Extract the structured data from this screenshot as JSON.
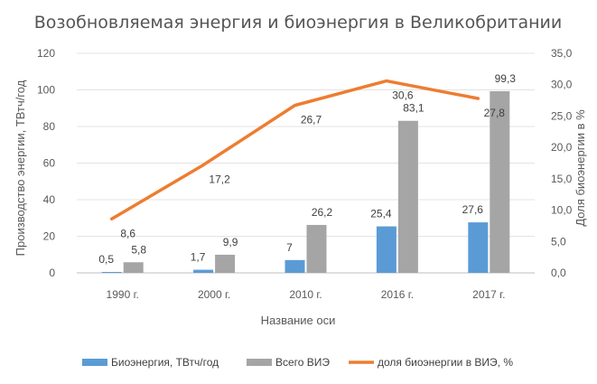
{
  "chart_data": {
    "type": "bar",
    "title": "Возобновляемая энергия и биоэнергия в Великобритании",
    "xlabel": "Название оси",
    "ylabel": "Производство энергии, ТВтч/год",
    "y2label": "Доля биоэнергии в %",
    "categories": [
      "1990 г.",
      "2000 г.",
      "2010 г.",
      "2016 г.",
      "2017 г."
    ],
    "ylim": [
      0,
      120
    ],
    "y2lim": [
      0,
      35
    ],
    "yticks": [
      "0",
      "20",
      "40",
      "60",
      "80",
      "100",
      "120"
    ],
    "y2ticks": [
      "0,0",
      "5,0",
      "10,0",
      "15,0",
      "20,0",
      "25,0",
      "30,0",
      "35,0"
    ],
    "grid": true,
    "legend_position": "bottom",
    "series": [
      {
        "name": "Биоэнергия, ТВтч/год",
        "type": "bar",
        "axis": "left",
        "color": "#5b9bd5",
        "values": [
          0.5,
          1.7,
          7,
          25.4,
          27.6
        ],
        "labels": [
          "0,5",
          "1,7",
          "7",
          "25,4",
          "27,6"
        ]
      },
      {
        "name": "Всего ВИЭ",
        "type": "bar",
        "axis": "left",
        "color": "#a5a5a5",
        "values": [
          5.8,
          9.9,
          26.2,
          83.1,
          99.3
        ],
        "labels": [
          "5,8",
          "9,9",
          "26,2",
          "83,1",
          "99,3"
        ]
      },
      {
        "name": "доля биоэнергии в ВИЭ, %",
        "type": "line",
        "axis": "right",
        "color": "#ed7d31",
        "values": [
          8.6,
          17.2,
          26.7,
          30.6,
          27.8
        ],
        "labels": [
          "8,6",
          "17,2",
          "26,7",
          "30,6",
          "27,8"
        ]
      }
    ]
  }
}
